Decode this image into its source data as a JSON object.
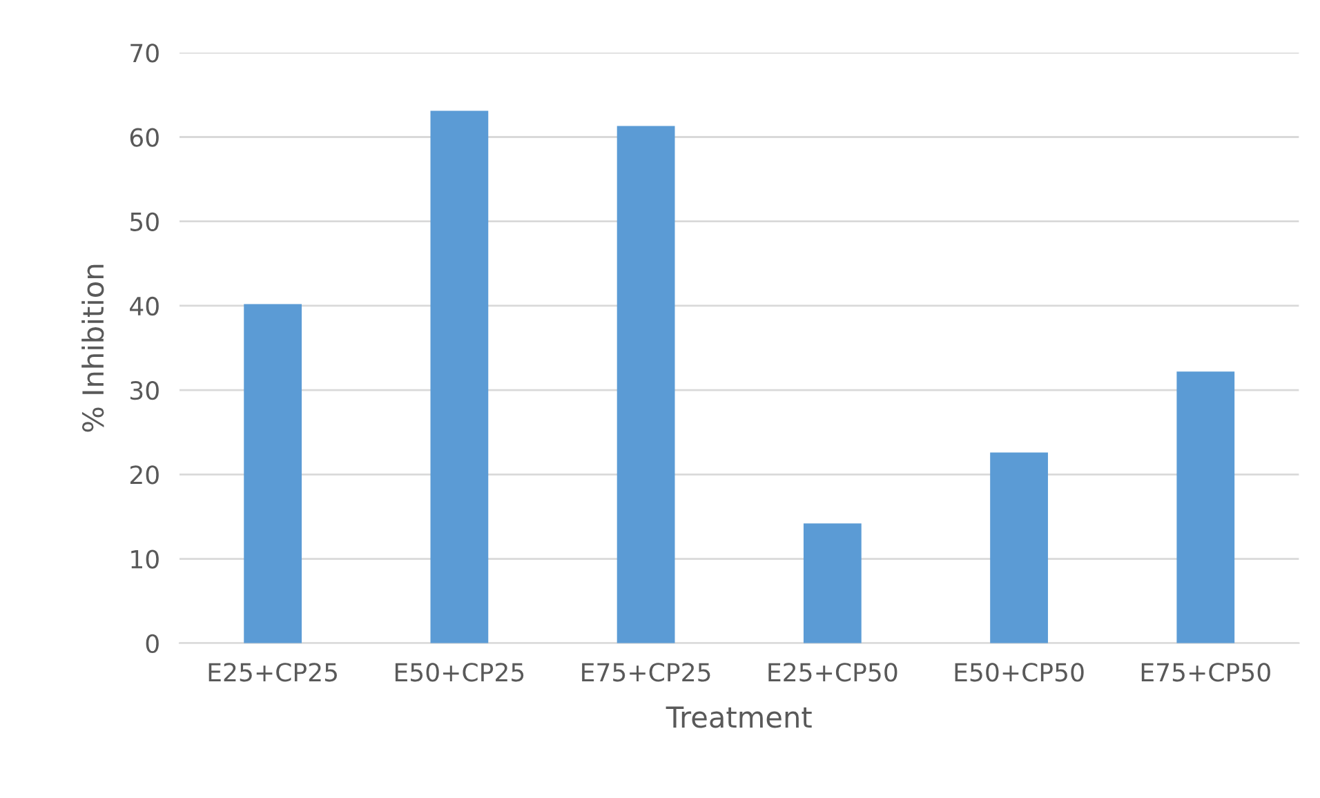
{
  "chart_data": {
    "type": "bar",
    "xlabel": "Treatment",
    "ylabel": "% Inhibition",
    "categories": [
      "E25+CP25",
      "E50+CP25",
      "E75+CP25",
      "E25+CP50",
      "E50+CP50",
      "E75+CP50"
    ],
    "values": [
      40.2,
      63.1,
      61.3,
      14.2,
      22.6,
      32.2
    ],
    "color": "#5b9bd5",
    "ylim": [
      0,
      70
    ],
    "yticks": [
      0,
      10,
      20,
      30,
      40,
      50,
      60,
      70
    ],
    "grid": "y",
    "legend": false
  }
}
